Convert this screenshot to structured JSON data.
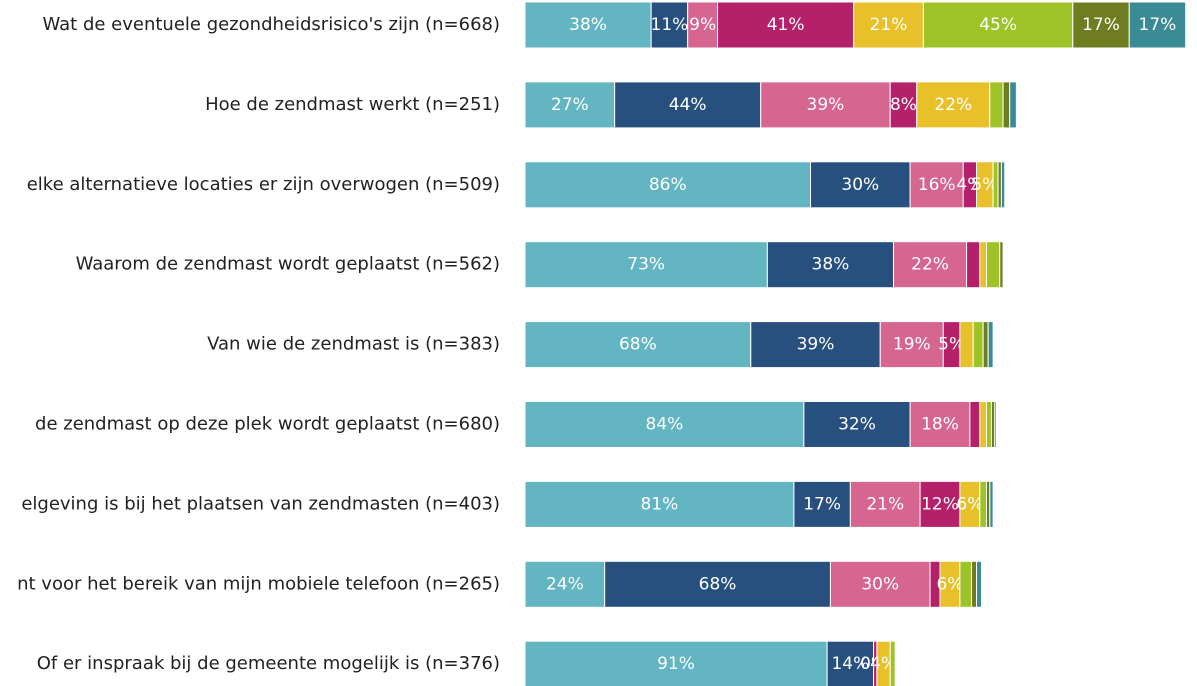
{
  "chart_data": {
    "type": "stacked-barh",
    "categories": [
      "Wat de eventuele gezondheidsrisico's zijn (n=668)",
      "Hoe de zendmast werkt (n=251)",
      "elke alternatieve locaties er zijn overwogen (n=509)",
      "Waarom de zendmast wordt geplaatst (n=562)",
      "Van wie de zendmast is (n=383)",
      "de zendmast op deze plek wordt geplaatst (n=680)",
      "elgeving is bij het plaatsen van zendmasten (n=403)",
      "nt voor het bereik van mijn mobiele telefoon (n=265)",
      "Of er inspraak bij de gemeente mogelijk is (n=376)"
    ],
    "series": [
      {
        "color": "#62b5c1",
        "values": [
          38,
          27,
          86,
          73,
          68,
          84,
          81,
          24,
          91
        ],
        "value_labels": [
          "38%",
          "27%",
          "86%",
          "73%",
          "68%",
          "84%",
          "81%",
          "24%",
          "91%"
        ]
      },
      {
        "color": "#27507f",
        "values": [
          11,
          44,
          30,
          38,
          39,
          32,
          17,
          68,
          14
        ],
        "value_labels": [
          "11%",
          "44%",
          "30%",
          "38%",
          "39%",
          "32%",
          "17%",
          "68%",
          "14%"
        ]
      },
      {
        "color": "#d6668f",
        "values": [
          9,
          39,
          16,
          22,
          19,
          18,
          21,
          30,
          0
        ],
        "value_labels": [
          "9%",
          "39%",
          "16%",
          "22%",
          "19%",
          "18%",
          "21%",
          "30%",
          "0%"
        ]
      },
      {
        "color": "#b5206b",
        "values": [
          41,
          8,
          4,
          4,
          5,
          3,
          12,
          3,
          1
        ],
        "value_labels": [
          "41%",
          "8%",
          "4%",
          null,
          "5%",
          null,
          "12%",
          null,
          null
        ]
      },
      {
        "color": "#e8c02a",
        "values": [
          21,
          22,
          5,
          2,
          4,
          2,
          6,
          6,
          4
        ],
        "value_labels": [
          "21%",
          "22%",
          "5%",
          null,
          null,
          null,
          "6%",
          "6%",
          "4%"
        ]
      },
      {
        "color": "#9dc326",
        "values": [
          45,
          4,
          1.5,
          4,
          3,
          1.5,
          2,
          3.5,
          1.5
        ],
        "value_labels": [
          "45%",
          null,
          null,
          null,
          null,
          null,
          null,
          null,
          null
        ]
      },
      {
        "color": "#6f7c1f",
        "values": [
          17,
          2,
          1,
          1,
          1.5,
          1,
          1,
          1.5,
          0
        ],
        "value_labels": [
          "17%",
          null,
          null,
          null,
          null,
          null,
          null,
          null,
          null
        ]
      },
      {
        "color": "#3a8b95",
        "values": [
          17,
          2,
          1,
          0,
          1.5,
          0.5,
          1,
          1.5,
          0
        ],
        "value_labels": [
          "17%",
          null,
          null,
          null,
          null,
          null,
          null,
          null,
          null
        ]
      }
    ]
  }
}
